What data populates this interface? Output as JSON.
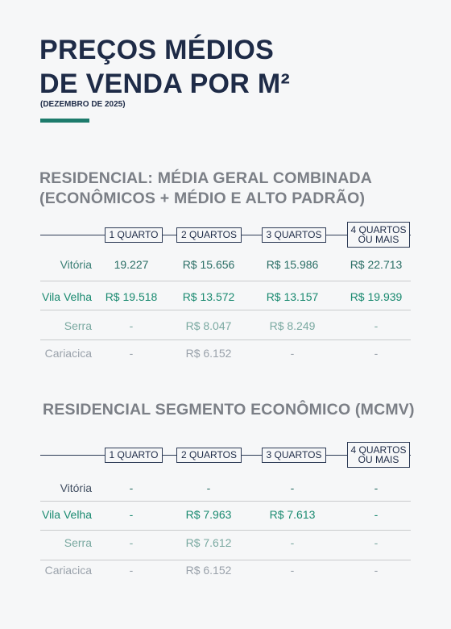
{
  "header": {
    "title_lines": [
      "PREÇOS MÉDIOS",
      "DE VENDA POR M²"
    ],
    "subtitle": "(DEZEMBRO DE 2025)"
  },
  "sections": [
    {
      "title_lines": [
        "RESIDENCIAL: MÉDIA GERAL COMBINADA",
        "(ECONÔMICOS + MÉDIO E ALTO PADRÃO)"
      ],
      "headers": [
        [
          "1 QUARTO"
        ],
        [
          "2 QUARTOS"
        ],
        [
          "3 QUARTOS"
        ],
        [
          "4 QUARTOS",
          "OU MAIS"
        ]
      ],
      "rows": [
        {
          "label": "Vitória",
          "cells": [
            "19.227",
            "R$ 15.656",
            "R$ 15.986",
            "R$ 22.713"
          ]
        },
        {
          "label": "Vila Velha",
          "cells": [
            "R$ 19.518",
            "R$ 13.572",
            "R$ 13.157",
            "R$ 19.939"
          ]
        },
        {
          "label": "Serra",
          "cells": [
            "-",
            "R$ 8.047",
            "R$ 8.249",
            "-"
          ]
        },
        {
          "label": "Cariacica",
          "cells": [
            "-",
            "R$ 6.152",
            "-",
            "-"
          ]
        }
      ]
    },
    {
      "title_lines": [
        "RESIDENCIAL SEGMENTO ECONÔMICO (MCMV)"
      ],
      "headers": [
        [
          "1 QUARTO"
        ],
        [
          "2 QUARTOS"
        ],
        [
          "3 QUARTOS"
        ],
        [
          "4 QUARTOS",
          "OU MAIS"
        ]
      ],
      "rows": [
        {
          "label": "Vitória",
          "cells": [
            "-",
            "-",
            "-",
            "-"
          ]
        },
        {
          "label": "Vila Velha",
          "cells": [
            "-",
            "R$ 7.963",
            "R$ 7.613",
            "-"
          ]
        },
        {
          "label": "Serra",
          "cells": [
            "-",
            "R$ 7.612",
            "-",
            "-"
          ]
        },
        {
          "label": "Cariacica",
          "cells": [
            "-",
            "R$ 6.152",
            "-",
            "-"
          ]
        }
      ]
    }
  ]
}
